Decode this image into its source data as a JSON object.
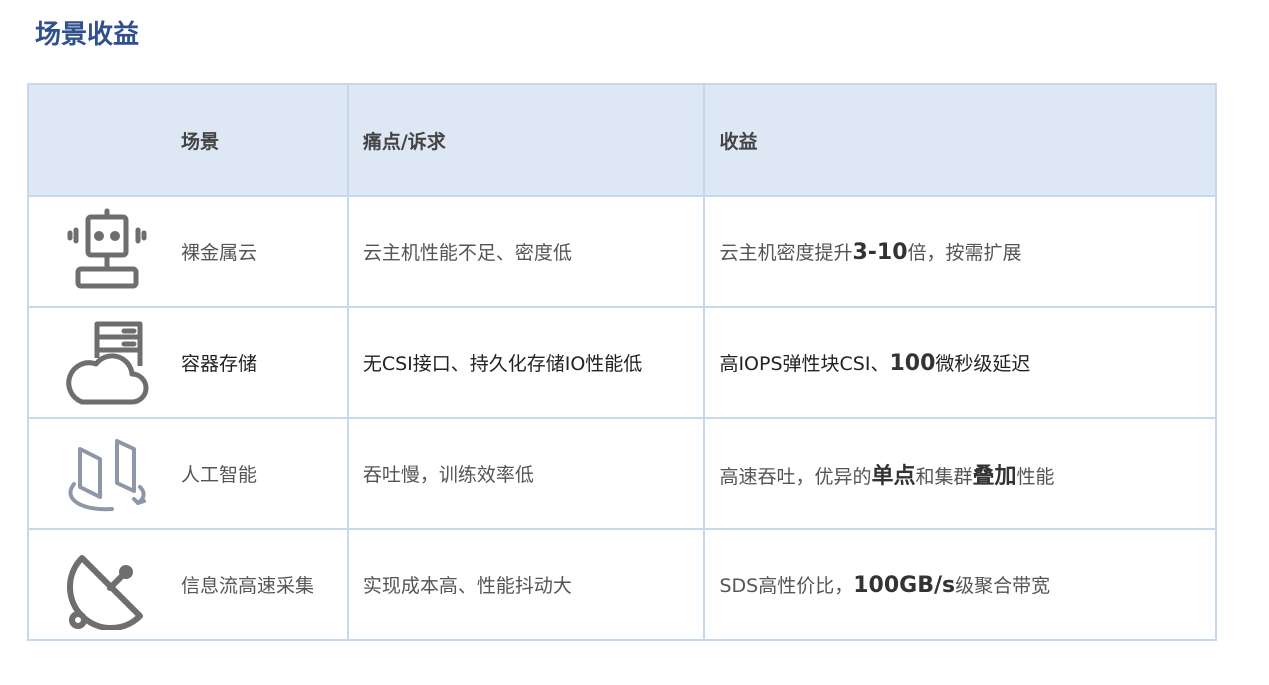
{
  "title": "场景收益",
  "headers": [
    "场景",
    "痛点/诉求",
    "收益"
  ],
  "rows": [
    {
      "icon": "robot-icon",
      "scene": "裸金属云",
      "pain": "云主机性能不足、密度低",
      "benefit": [
        {
          "t": "云主机密度提升",
          "b": false
        },
        {
          "t": "3-10",
          "b": true
        },
        {
          "t": "倍，按需扩展",
          "b": false
        }
      ],
      "dark": false
    },
    {
      "icon": "cloud-server-icon",
      "scene": "容器存储",
      "pain": "无CSI接口、持久化存储IO性能低",
      "benefit": [
        {
          "t": "高IOPS弹性块CSI、",
          "b": false
        },
        {
          "t": "100",
          "b": true
        },
        {
          "t": "微秒级延迟",
          "b": false
        }
      ],
      "dark": true
    },
    {
      "icon": "ai-panels-rotate-icon",
      "scene": "人工智能",
      "pain": "吞吐慢，训练效率低",
      "benefit": [
        {
          "t": "高速吞吐，优异的",
          "b": false
        },
        {
          "t": "单点",
          "b": true
        },
        {
          "t": "和集群",
          "b": false
        },
        {
          "t": "叠加",
          "b": true
        },
        {
          "t": "性能",
          "b": false
        }
      ],
      "dark": false
    },
    {
      "icon": "satellite-dish-icon",
      "scene": "信息流高速采集",
      "pain": "实现成本高、性能抖动大",
      "benefit": [
        {
          "t": "SDS高性价比，",
          "b": false
        },
        {
          "t": "100GB/s",
          "b": true
        },
        {
          "t": "级聚合带宽",
          "b": false
        }
      ],
      "dark": false
    }
  ]
}
